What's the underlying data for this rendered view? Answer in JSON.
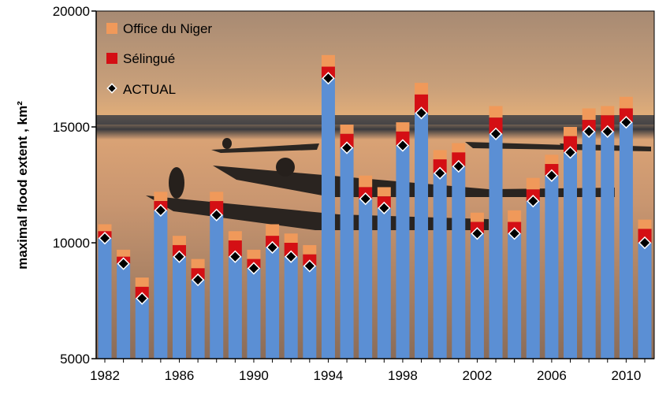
{
  "chart_data": {
    "type": "bar",
    "ylabel": "maximal flood extent , km²",
    "ylim": [
      5000,
      20000
    ],
    "yticks": [
      "5000",
      "10000",
      "15000",
      "20000"
    ],
    "xticks": [
      "1982",
      "1986",
      "1990",
      "1994",
      "1998",
      "2002",
      "2006",
      "2010"
    ],
    "x": [
      1982,
      1983,
      1984,
      1985,
      1986,
      1987,
      1988,
      1989,
      1990,
      1991,
      1992,
      1993,
      1994,
      1995,
      1996,
      1997,
      1998,
      1999,
      2000,
      2001,
      2002,
      2003,
      2004,
      2005,
      2006,
      2007,
      2008,
      2009,
      2010,
      2011
    ],
    "legend_position": "top-left",
    "series": [
      {
        "name": "Office du Niger",
        "kind": "stacked-bar-top",
        "color": "#f0995a",
        "values": [
          10800,
          9700,
          8500,
          12200,
          10300,
          9300,
          12200,
          10500,
          9700,
          10800,
          10400,
          9900,
          18100,
          15100,
          12900,
          12400,
          15200,
          16900,
          14000,
          14300,
          11300,
          15900,
          11400,
          12800,
          13800,
          15000,
          15800,
          15900,
          16300,
          11000
        ]
      },
      {
        "name": "Sélingué",
        "kind": "stacked-bar-middle",
        "color": "#d40f14",
        "values": [
          10500,
          9400,
          8100,
          11800,
          9900,
          8900,
          11800,
          10100,
          9300,
          10300,
          10000,
          9500,
          17600,
          14700,
          12400,
          12000,
          14800,
          16400,
          13600,
          13900,
          10900,
          15400,
          10900,
          12300,
          13400,
          14600,
          15300,
          15500,
          15800,
          10600
        ]
      },
      {
        "name": "ACTUAL",
        "kind": "bar-with-marker",
        "color": "#5b8fd4",
        "values": [
          10200,
          9100,
          7600,
          11400,
          9400,
          8400,
          11200,
          9400,
          8900,
          9800,
          9400,
          9000,
          17100,
          14100,
          11900,
          11500,
          14200,
          15600,
          13000,
          13300,
          10400,
          14700,
          10400,
          11800,
          12900,
          13900,
          14800,
          14800,
          15200,
          10000
        ]
      }
    ]
  }
}
